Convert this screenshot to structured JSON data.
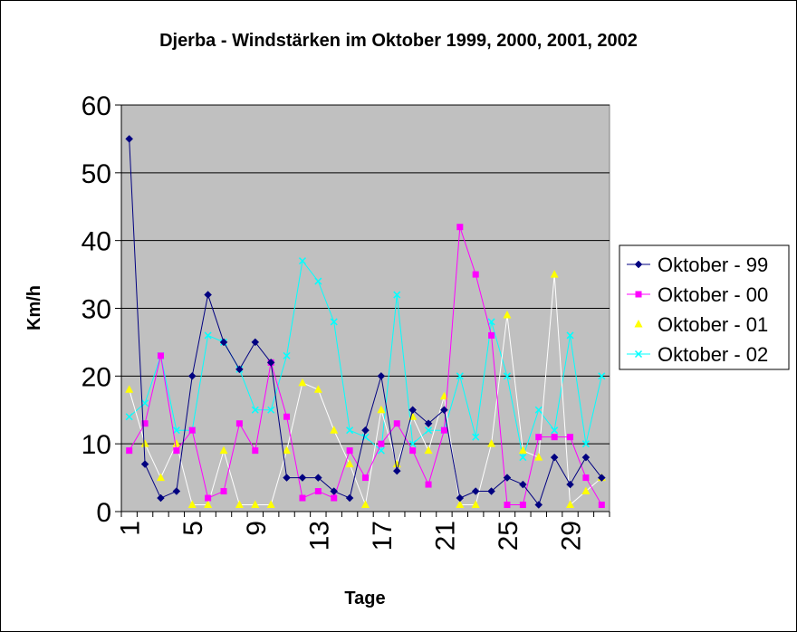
{
  "chart_data": {
    "type": "line",
    "title": "Djerba - Windstärken im Oktober 1999, 2000, 2001, 2002",
    "xlabel": "Tage",
    "ylabel": "Km/h",
    "ylim": [
      0,
      60
    ],
    "yticks": [
      0,
      10,
      20,
      30,
      40,
      50,
      60
    ],
    "xticks": [
      1,
      5,
      9,
      13,
      17,
      21,
      25,
      29
    ],
    "x": [
      1,
      2,
      3,
      4,
      5,
      6,
      7,
      8,
      9,
      10,
      11,
      12,
      13,
      14,
      15,
      16,
      17,
      18,
      19,
      20,
      21,
      22,
      23,
      24,
      25,
      26,
      27,
      28,
      29,
      30,
      31
    ],
    "grid": true,
    "legend": "right",
    "plot_background": "#c0c0c0",
    "series": [
      {
        "name": "Oktober - 99",
        "color": "#000080",
        "marker": "diamond",
        "values": [
          55,
          7,
          2,
          3,
          20,
          32,
          25,
          21,
          25,
          22,
          5,
          5,
          5,
          3,
          2,
          12,
          20,
          6,
          15,
          13,
          15,
          2,
          3,
          3,
          5,
          4,
          1,
          8,
          4,
          8,
          5
        ]
      },
      {
        "name": "Oktober - 00",
        "color": "#ff00ff",
        "marker": "square",
        "values": [
          9,
          13,
          23,
          9,
          12,
          2,
          3,
          13,
          9,
          22,
          14,
          2,
          3,
          2,
          9,
          5,
          10,
          13,
          9,
          4,
          12,
          42,
          35,
          26,
          1,
          1,
          11,
          11,
          11,
          5,
          1
        ]
      },
      {
        "name": "Oktober - 01",
        "color": "#ffff00",
        "marker": "triangle",
        "values": [
          18,
          10,
          5,
          10,
          1,
          1,
          9,
          1,
          1,
          1,
          9,
          19,
          18,
          12,
          7,
          1,
          15,
          7,
          14,
          9,
          17,
          1,
          1,
          10,
          29,
          9,
          8,
          35,
          1,
          3,
          5
        ]
      },
      {
        "name": "Oktober - 02",
        "color": "#00ffff",
        "marker": "x",
        "values": [
          14,
          16,
          23,
          12,
          12,
          26,
          25,
          21,
          15,
          15,
          23,
          37,
          34,
          28,
          12,
          11,
          9,
          32,
          10,
          12,
          12,
          20,
          11,
          28,
          20,
          8,
          15,
          12,
          26,
          10,
          20
        ]
      }
    ]
  }
}
